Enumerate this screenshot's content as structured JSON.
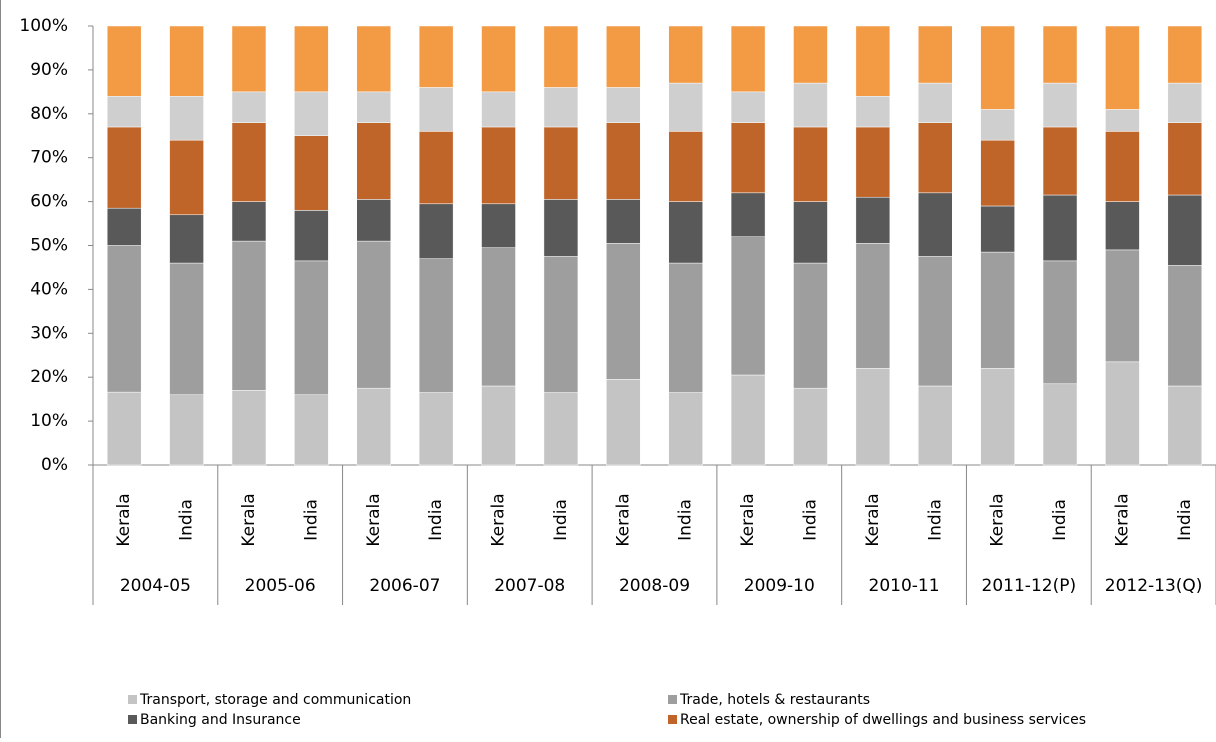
{
  "chart_data": {
    "type": "stacked_bar",
    "categories": [
      "Kerala",
      "India",
      "Kerala",
      "India",
      "Kerala",
      "India",
      "Kerala",
      "India",
      "Kerala",
      "India",
      "Kerala",
      "India",
      "Kerala",
      "India",
      "Kerala",
      "India",
      "Kerala",
      "India"
    ],
    "groups": [
      "2004-05",
      "2005-06",
      "2006-07",
      "2007-08",
      "2008-09",
      "2009-10",
      "2010-11",
      "2011-12(P)",
      "2012-13(Q)"
    ],
    "ylim": [
      0,
      100
    ],
    "yticks": [
      {
        "value": 0,
        "label": "0%"
      },
      {
        "value": 10,
        "label": "10%"
      },
      {
        "value": 20,
        "label": "20%"
      },
      {
        "value": 30,
        "label": "30%"
      },
      {
        "value": 40,
        "label": "40%"
      },
      {
        "value": 50,
        "label": "50%"
      },
      {
        "value": 60,
        "label": "60%"
      },
      {
        "value": 70,
        "label": "70%"
      },
      {
        "value": 80,
        "label": "80%"
      },
      {
        "value": 90,
        "label": "90%"
      },
      {
        "value": 100,
        "label": "100%"
      }
    ],
    "series": [
      {
        "name": "Transport, storage and communication",
        "color": "#c4c4c4",
        "values": [
          16.6,
          16,
          17,
          16,
          17.5,
          16.5,
          18,
          16.5,
          19.5,
          16.5,
          20.5,
          17.5,
          22,
          18,
          22,
          18.5,
          23.5,
          18
        ]
      },
      {
        "name": "Trade, hotels & restaurants",
        "color": "#9e9e9e",
        "values": [
          33.4,
          30,
          34,
          30.5,
          33.5,
          30.5,
          31.5,
          31,
          31,
          29.5,
          31.5,
          28.5,
          28.5,
          29.5,
          26.5,
          28,
          25.5,
          27.5
        ]
      },
      {
        "name": "Banking and Insurance",
        "color": "#595959",
        "values": [
          8.5,
          11,
          9,
          11.5,
          9.5,
          12.5,
          10,
          13,
          10,
          14,
          10,
          14,
          10.5,
          14.5,
          10.5,
          15,
          11,
          16
        ]
      },
      {
        "name": "Real estate, ownership of dwellings and business services",
        "color": "#c0652a",
        "values": [
          18.5,
          17,
          18,
          17,
          17.5,
          16.5,
          17.5,
          16.5,
          17.5,
          16,
          16,
          17,
          16,
          16,
          15,
          15.5,
          16,
          16.5
        ]
      },
      {
        "color": "#cfcfcf",
        "values": [
          7,
          10,
          7,
          10,
          7,
          10,
          8,
          9,
          8,
          11,
          7,
          10,
          7,
          9,
          7,
          10,
          5,
          9
        ]
      },
      {
        "color": "#f39a45",
        "values": [
          16,
          16,
          15,
          15,
          15,
          14,
          15,
          14,
          14,
          13,
          15,
          13,
          16,
          13,
          19,
          13,
          19,
          13
        ]
      }
    ]
  }
}
